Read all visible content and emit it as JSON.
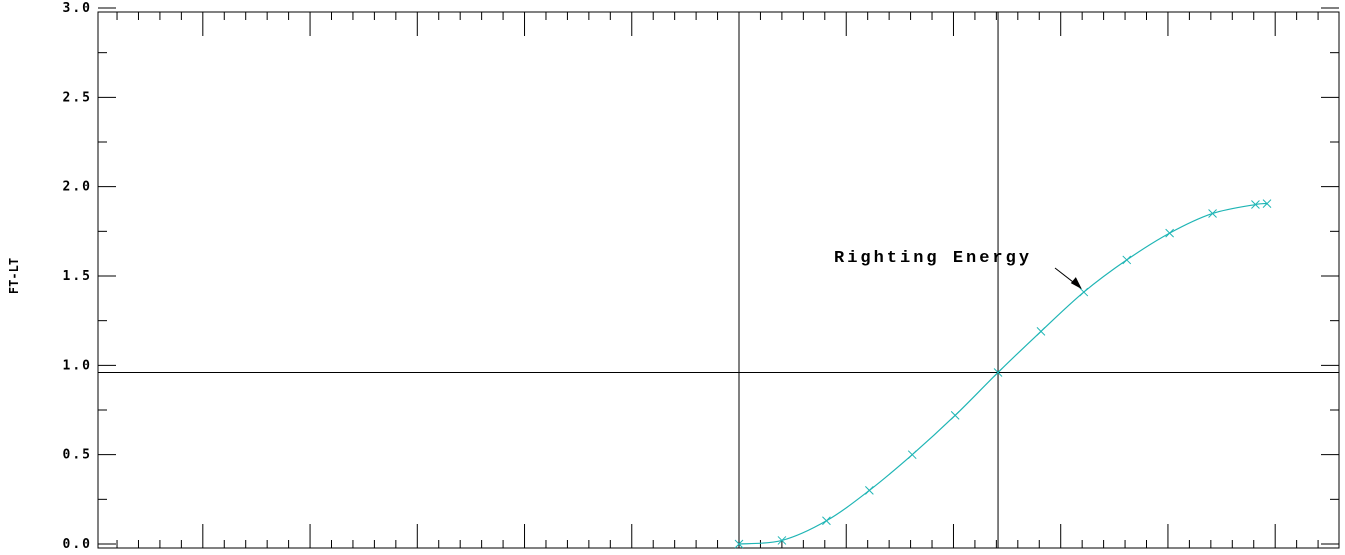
{
  "chart_data": {
    "type": "line",
    "title": "",
    "xlabel": "",
    "ylabel": "FT-LT",
    "xlim": [
      0,
      1
    ],
    "ylim": [
      0,
      3
    ],
    "yticks": [
      0.0,
      0.5,
      1.0,
      1.5,
      2.0,
      2.5,
      3.0
    ],
    "ytick_labels": [
      "0.0",
      "0.5",
      "1.0",
      "1.5",
      "2.0",
      "2.5",
      "3.0"
    ],
    "grid": false,
    "series": [
      {
        "name": "",
        "color": "#1fb5b5",
        "marker": "x",
        "x": [
          0.0,
          0.0813,
          0.1656,
          0.2469,
          0.3281,
          0.4094,
          0.4906,
          0.5719,
          0.6531,
          0.7344,
          0.8156,
          0.8969,
          0.9781,
          1.0
        ],
        "y": [
          0.0,
          0.02,
          0.13,
          0.3,
          0.5,
          0.72,
          0.96,
          1.19,
          1.41,
          1.59,
          1.74,
          1.85,
          1.9,
          1.905
        ]
      }
    ],
    "reference_lines": [
      {
        "orientation": "horizontal",
        "y": 0.96
      },
      {
        "orientation": "vertical",
        "x": 0.0
      },
      {
        "orientation": "vertical",
        "x": 0.4906
      }
    ],
    "annotations": [
      {
        "text": "Righting Energy",
        "x": 0.6531,
        "y": 1.41
      }
    ],
    "line_color": "#000000",
    "series_color": "#1fb5b5"
  }
}
